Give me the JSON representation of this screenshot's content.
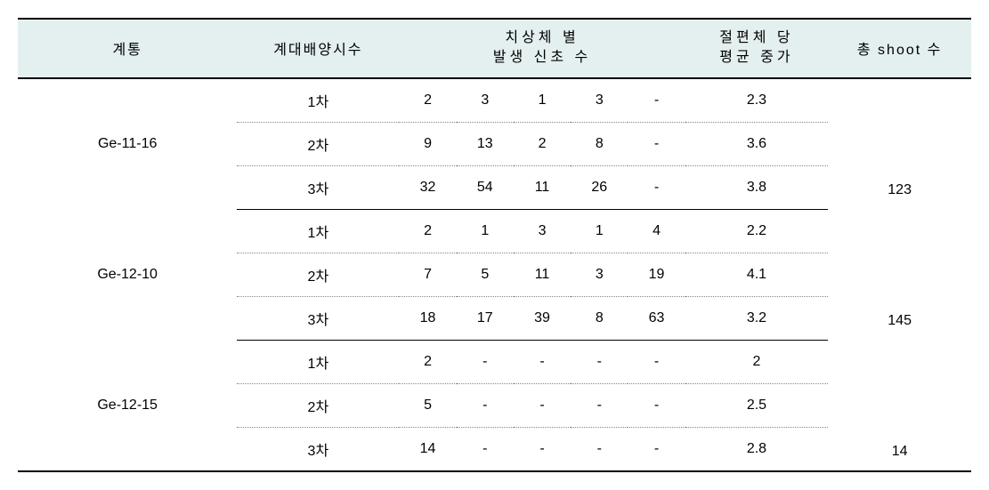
{
  "headers": {
    "lineage": "계통",
    "subculture": "계대배양시수",
    "perEmbryoTop": "치상체 별",
    "perEmbryoBottom": "발생 신초 수",
    "avgTop": "절편체 당",
    "avgBottom": "평균 중가",
    "totalShoot": "총 shoot 수"
  },
  "passLabels": [
    "1차",
    "2차",
    "3차"
  ],
  "dash": "-",
  "groups": [
    {
      "lineage": "Ge-11-16",
      "rows": [
        {
          "v": [
            "2",
            "3",
            "1",
            "3",
            "-"
          ],
          "avg": "2.3"
        },
        {
          "v": [
            "9",
            "13",
            "2",
            "8",
            "-"
          ],
          "avg": "3.6"
        },
        {
          "v": [
            "32",
            "54",
            "11",
            "26",
            "-"
          ],
          "avg": "3.8"
        }
      ],
      "total": "123"
    },
    {
      "lineage": "Ge-12-10",
      "rows": [
        {
          "v": [
            "2",
            "1",
            "3",
            "1",
            "4"
          ],
          "avg": "2.2"
        },
        {
          "v": [
            "7",
            "5",
            "11",
            "3",
            "19"
          ],
          "avg": "4.1"
        },
        {
          "v": [
            "18",
            "17",
            "39",
            "8",
            "63"
          ],
          "avg": "3.2"
        }
      ],
      "total": "145"
    },
    {
      "lineage": "Ge-12-15",
      "rows": [
        {
          "v": [
            "2",
            "-",
            "-",
            "-",
            "-"
          ],
          "avg": "2"
        },
        {
          "v": [
            "5",
            "-",
            "-",
            "-",
            "-"
          ],
          "avg": "2.5"
        },
        {
          "v": [
            "14",
            "-",
            "-",
            "-",
            "-"
          ],
          "avg": "2.8"
        }
      ],
      "total": "14"
    }
  ],
  "style": {
    "headerBg": "#e4efef",
    "borderColor": "#000000",
    "dottedColor": "#888888",
    "fontSize": 16
  }
}
